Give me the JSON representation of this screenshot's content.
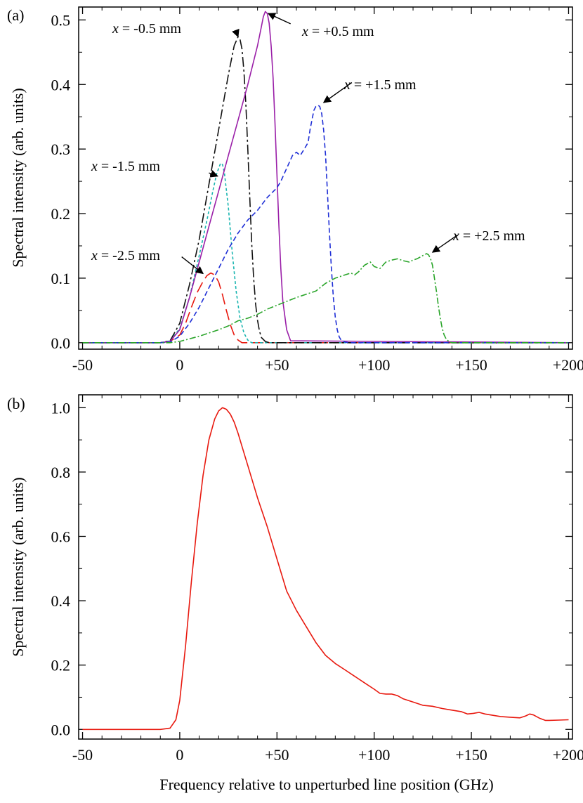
{
  "chart_data": [
    {
      "panel_label": "(a)",
      "type": "line",
      "ylabel": "Spectral intensity (arb. units)",
      "xlabel": "",
      "xlim": [
        -52,
        202
      ],
      "ylim": [
        -0.01,
        0.52
      ],
      "xticks": [
        -50,
        0,
        50,
        100,
        150,
        200
      ],
      "xtick_labels": [
        "-50",
        "0",
        "+50",
        "+100",
        "+150",
        "+200"
      ],
      "yticks": [
        0.0,
        0.1,
        0.2,
        0.3,
        0.4,
        0.5
      ],
      "ytick_labels": [
        "0.0",
        "0.1",
        "0.2",
        "0.3",
        "0.4",
        "0.5"
      ],
      "series": [
        {
          "key": "m25",
          "color": "#e8190f",
          "dash": "16,7",
          "x": [
            -50,
            -10,
            -5,
            0,
            3,
            6,
            9,
            12,
            14,
            16,
            18,
            20,
            22,
            24,
            26,
            28,
            30,
            32,
            200
          ],
          "y": [
            0,
            0,
            0.002,
            0.012,
            0.03,
            0.055,
            0.078,
            0.095,
            0.104,
            0.108,
            0.105,
            0.094,
            0.074,
            0.05,
            0.028,
            0.012,
            0.004,
            0,
            0
          ]
        },
        {
          "key": "m15",
          "color": "#19b5b0",
          "dash": "4,3",
          "x": [
            -50,
            -10,
            -5,
            0,
            5,
            10,
            14,
            17,
            19,
            21,
            22,
            23,
            25,
            27,
            29,
            31,
            33,
            35,
            37,
            200
          ],
          "y": [
            0,
            0,
            0.003,
            0.022,
            0.07,
            0.135,
            0.19,
            0.235,
            0.262,
            0.278,
            0.276,
            0.262,
            0.21,
            0.14,
            0.08,
            0.038,
            0.015,
            0.004,
            0,
            0
          ]
        },
        {
          "key": "m05",
          "color": "#111111",
          "dash": "14,4,3,4",
          "x": [
            -50,
            -10,
            -5,
            0,
            5,
            10,
            15,
            20,
            25,
            28,
            30,
            31,
            32,
            33,
            34,
            35,
            36,
            37,
            38,
            39,
            40,
            41,
            42,
            44,
            46,
            200
          ],
          "y": [
            0,
            0,
            0.003,
            0.03,
            0.09,
            0.16,
            0.245,
            0.33,
            0.415,
            0.46,
            0.474,
            0.47,
            0.455,
            0.42,
            0.37,
            0.3,
            0.225,
            0.155,
            0.1,
            0.06,
            0.035,
            0.018,
            0.008,
            0.002,
            0,
            0
          ]
        },
        {
          "key": "p05",
          "color": "#9a1fa8",
          "dash": "",
          "x": [
            -50,
            -10,
            -5,
            0,
            5,
            10,
            15,
            20,
            25,
            30,
            35,
            40,
            42,
            43,
            44,
            45,
            46,
            47,
            48,
            49,
            50,
            51,
            52,
            53,
            55,
            57,
            200
          ],
          "y": [
            0,
            0,
            0.002,
            0.02,
            0.07,
            0.125,
            0.18,
            0.235,
            0.29,
            0.345,
            0.4,
            0.46,
            0.49,
            0.505,
            0.513,
            0.51,
            0.495,
            0.46,
            0.41,
            0.34,
            0.26,
            0.18,
            0.115,
            0.065,
            0.02,
            0.003,
            0
          ]
        },
        {
          "key": "p15",
          "color": "#1f2fd6",
          "dash": "7,4",
          "x": [
            -50,
            -10,
            -5,
            0,
            5,
            10,
            15,
            20,
            25,
            30,
            35,
            40,
            45,
            50,
            52,
            55,
            58,
            60,
            62,
            64,
            66,
            67,
            68,
            69,
            70,
            71,
            72,
            73,
            74,
            75,
            76,
            77,
            78,
            79,
            80,
            81,
            82,
            83,
            85,
            87,
            200
          ],
          "y": [
            0,
            0,
            0.001,
            0.01,
            0.03,
            0.055,
            0.085,
            0.115,
            0.145,
            0.17,
            0.19,
            0.205,
            0.225,
            0.24,
            0.25,
            0.27,
            0.29,
            0.295,
            0.29,
            0.3,
            0.31,
            0.33,
            0.345,
            0.36,
            0.366,
            0.368,
            0.366,
            0.355,
            0.33,
            0.29,
            0.23,
            0.17,
            0.115,
            0.07,
            0.04,
            0.02,
            0.009,
            0.004,
            0.001,
            0,
            0
          ]
        },
        {
          "key": "p25",
          "color": "#2aa52a",
          "dash": "9,3,2,3",
          "x": [
            -50,
            -10,
            -5,
            0,
            10,
            20,
            25,
            30,
            35,
            40,
            45,
            50,
            55,
            60,
            65,
            70,
            75,
            80,
            85,
            88,
            90,
            92,
            95,
            98,
            100,
            103,
            106,
            109,
            112,
            115,
            118,
            120,
            122,
            125,
            127,
            128,
            129,
            130,
            131,
            132,
            133,
            134,
            135,
            136,
            137,
            138,
            139,
            140,
            142,
            145,
            200
          ],
          "y": [
            0,
            0,
            0,
            0.002,
            0.01,
            0.02,
            0.026,
            0.034,
            0.038,
            0.044,
            0.052,
            0.058,
            0.064,
            0.07,
            0.075,
            0.08,
            0.092,
            0.1,
            0.105,
            0.108,
            0.105,
            0.11,
            0.12,
            0.125,
            0.118,
            0.115,
            0.125,
            0.128,
            0.13,
            0.127,
            0.125,
            0.128,
            0.13,
            0.135,
            0.138,
            0.136,
            0.13,
            0.12,
            0.1,
            0.08,
            0.058,
            0.038,
            0.022,
            0.012,
            0.006,
            0.003,
            0.001,
            0,
            0,
            0,
            0
          ]
        }
      ],
      "annotations": [
        {
          "key": "m05",
          "italic": "x",
          "rest": " = -0.5 mm",
          "from": [
            29.5,
            0.478
          ],
          "tip_x": 30,
          "tip_y": 0.474
        },
        {
          "key": "p05",
          "italic": "x",
          "rest": " = +0.5 mm",
          "from": [
            57,
            0.494
          ],
          "tip_x": 45.5,
          "tip_y": 0.51
        },
        {
          "key": "p15",
          "italic": "x",
          "rest": " = +1.5 mm",
          "from": [
            88.5,
            0.403
          ],
          "tip_x": 74,
          "tip_y": 0.372
        },
        {
          "key": "m15",
          "italic": "x",
          "rest": " = -1.5 mm",
          "from": [
            15,
            0.263
          ],
          "tip_x": 19.5,
          "tip_y": 0.258
        },
        {
          "key": "m25",
          "italic": "x",
          "rest": " = -2.5 mm",
          "from": [
            1,
            0.133
          ],
          "tip_x": 12,
          "tip_y": 0.107
        },
        {
          "key": "p25",
          "italic": "x",
          "rest": " = +2.5 mm",
          "from": [
            143,
            0.167
          ],
          "tip_x": 130,
          "tip_y": 0.14
        }
      ]
    },
    {
      "panel_label": "(b)",
      "type": "line",
      "ylabel": "Spectral intensity (arb. units)",
      "xlabel": "Frequency relative to unperturbed line position (GHz)",
      "xlim": [
        -52,
        202
      ],
      "ylim": [
        -0.03,
        1.04
      ],
      "xticks": [
        -50,
        0,
        50,
        100,
        150,
        200
      ],
      "xtick_labels": [
        "-50",
        "0",
        "+50",
        "+100",
        "+150",
        "+200"
      ],
      "yticks": [
        0.0,
        0.2,
        0.4,
        0.6,
        0.8,
        1.0
      ],
      "ytick_labels": [
        "0.0",
        "0.2",
        "0.4",
        "0.6",
        "0.8",
        "1.0"
      ],
      "series": [
        {
          "key": "sum",
          "color": "#e8190f",
          "dash": "",
          "x": [
            -50,
            -10,
            -5,
            -2,
            0,
            3,
            6,
            9,
            12,
            15,
            18,
            20,
            22,
            24,
            26,
            28,
            30,
            32,
            35,
            38,
            40,
            45,
            50,
            55,
            60,
            65,
            70,
            75,
            80,
            85,
            90,
            95,
            100,
            103,
            106,
            109,
            112,
            115,
            120,
            125,
            130,
            135,
            140,
            145,
            148,
            151,
            154,
            157,
            160,
            165,
            170,
            175,
            178,
            180,
            182,
            185,
            188,
            190,
            195,
            200
          ],
          "y": [
            0,
            0,
            0.004,
            0.03,
            0.09,
            0.26,
            0.46,
            0.64,
            0.79,
            0.9,
            0.965,
            0.99,
            1.0,
            0.995,
            0.98,
            0.955,
            0.92,
            0.88,
            0.82,
            0.76,
            0.72,
            0.63,
            0.53,
            0.43,
            0.37,
            0.32,
            0.27,
            0.23,
            0.205,
            0.185,
            0.165,
            0.145,
            0.125,
            0.112,
            0.11,
            0.11,
            0.105,
            0.095,
            0.085,
            0.075,
            0.072,
            0.065,
            0.06,
            0.055,
            0.048,
            0.05,
            0.053,
            0.048,
            0.045,
            0.04,
            0.038,
            0.036,
            0.042,
            0.048,
            0.045,
            0.035,
            0.028,
            0.028,
            0.029,
            0.03
          ]
        }
      ]
    }
  ]
}
